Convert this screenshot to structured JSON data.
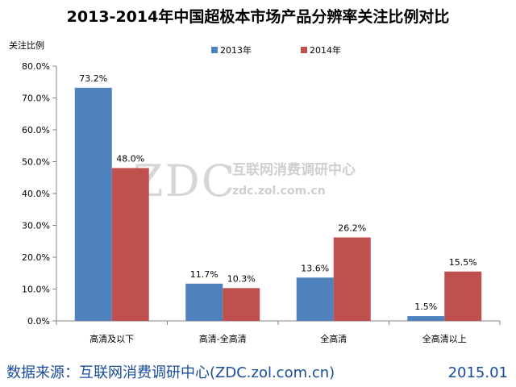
{
  "chart_data": {
    "type": "bar",
    "title": "2013-2014年中国超极本市场产品分辨率关注比例对比",
    "ylabel": "关注比例",
    "categories": [
      "高清及以下",
      "高清-全高清",
      "全高清",
      "全高清以上"
    ],
    "series": [
      {
        "name": "2013年",
        "color": "#4f81bd",
        "values": [
          73.2,
          11.7,
          13.6,
          1.5
        ],
        "labels": [
          "73.2%",
          "11.7%",
          "13.6%",
          "1.5%"
        ]
      },
      {
        "name": "2014年",
        "color": "#c0504d",
        "values": [
          48.0,
          10.3,
          26.2,
          15.5
        ],
        "labels": [
          "48.0%",
          "10.3%",
          "26.2%",
          "15.5%"
        ]
      }
    ],
    "ylim": [
      0,
      80
    ],
    "yticks": [
      0,
      10,
      20,
      30,
      40,
      50,
      60,
      70,
      80
    ],
    "ytick_labels": [
      "0.0%",
      "10.0%",
      "20.0%",
      "30.0%",
      "40.0%",
      "50.0%",
      "60.0%",
      "70.0%",
      "80.0%"
    ],
    "grid": false,
    "legend_position": "top-center"
  },
  "watermark": {
    "logo": "ZDC",
    "name": "互联网消费调研中心",
    "url": "zdc.zol.com.cn"
  },
  "footer": {
    "source": "数据来源：互联网消费调研中心(ZDC.zol.com.cn)",
    "date": "2015.01"
  },
  "colors": {
    "footer_text": "#1a4c9c",
    "axis": "#868686"
  }
}
